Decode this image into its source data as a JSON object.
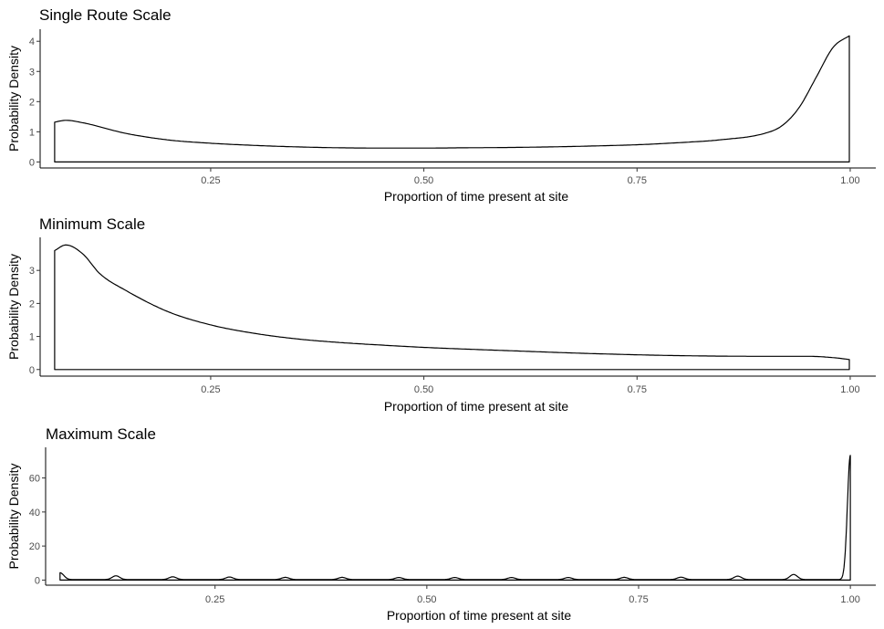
{
  "chart_data": [
    {
      "type": "area",
      "title": "Single Route Scale",
      "xlabel": "Proportion of time present at site",
      "ylabel": "Probability Density",
      "xlim": [
        0.05,
        1.03
      ],
      "ylim": [
        -0.2,
        4.4
      ],
      "xticks": [
        0.25,
        0.5,
        0.75,
        1.0
      ],
      "xtick_labels": [
        "0.25",
        "0.50",
        "0.75",
        "1.00"
      ],
      "yticks": [
        0,
        1,
        2,
        3,
        4
      ],
      "ytick_labels": [
        "0",
        "1",
        "2",
        "3",
        "4"
      ],
      "grid": false,
      "x": [
        0.067,
        0.08,
        0.1,
        0.15,
        0.2,
        0.25,
        0.3,
        0.35,
        0.4,
        0.45,
        0.5,
        0.55,
        0.6,
        0.65,
        0.7,
        0.75,
        0.8,
        0.85,
        0.9,
        0.92,
        0.94,
        0.96,
        0.98,
        1.0
      ],
      "values": [
        1.32,
        1.38,
        1.3,
        0.95,
        0.73,
        0.62,
        0.55,
        0.5,
        0.47,
        0.46,
        0.46,
        0.47,
        0.48,
        0.5,
        0.53,
        0.57,
        0.64,
        0.74,
        0.95,
        1.2,
        1.8,
        2.8,
        3.8,
        4.2
      ]
    },
    {
      "type": "area",
      "title": "Minimum Scale",
      "xlabel": "Proportion of time present at site",
      "ylabel": "Probability Density",
      "xlim": [
        0.05,
        1.03
      ],
      "ylim": [
        -0.2,
        4.0
      ],
      "xticks": [
        0.25,
        0.5,
        0.75,
        1.0
      ],
      "xtick_labels": [
        "0.25",
        "0.50",
        "0.75",
        "1.00"
      ],
      "yticks": [
        0,
        1,
        2,
        3
      ],
      "ytick_labels": [
        "0",
        "1",
        "2",
        "3"
      ],
      "grid": false,
      "x": [
        0.067,
        0.08,
        0.1,
        0.12,
        0.15,
        0.2,
        0.25,
        0.3,
        0.35,
        0.4,
        0.45,
        0.5,
        0.6,
        0.7,
        0.8,
        0.9,
        0.95,
        0.98,
        1.0
      ],
      "values": [
        3.6,
        3.77,
        3.5,
        2.9,
        2.4,
        1.75,
        1.35,
        1.1,
        0.93,
        0.82,
        0.74,
        0.67,
        0.57,
        0.48,
        0.42,
        0.4,
        0.4,
        0.36,
        0.3
      ]
    },
    {
      "type": "area",
      "title": "Maximum Scale",
      "xlabel": "Proportion of time present at site",
      "ylabel": "Probability Density",
      "xlim": [
        0.05,
        1.03
      ],
      "ylim": [
        -3,
        78
      ],
      "xticks": [
        0.25,
        0.5,
        0.75,
        1.0
      ],
      "xtick_labels": [
        "0.25",
        "0.50",
        "0.75",
        "1.00"
      ],
      "yticks": [
        0,
        20,
        40,
        60
      ],
      "ytick_labels": [
        "0",
        "20",
        "40",
        "60"
      ],
      "grid": false,
      "baseline": 0.3,
      "bumps": [
        {
          "x": 0.067,
          "height": 4.0
        },
        {
          "x": 0.133,
          "height": 2.2
        },
        {
          "x": 0.2,
          "height": 1.6
        },
        {
          "x": 0.267,
          "height": 1.5
        },
        {
          "x": 0.333,
          "height": 1.3
        },
        {
          "x": 0.4,
          "height": 1.3
        },
        {
          "x": 0.467,
          "height": 1.2
        },
        {
          "x": 0.533,
          "height": 1.2
        },
        {
          "x": 0.6,
          "height": 1.2
        },
        {
          "x": 0.667,
          "height": 1.2
        },
        {
          "x": 0.733,
          "height": 1.3
        },
        {
          "x": 0.8,
          "height": 1.4
        },
        {
          "x": 0.867,
          "height": 2.0
        },
        {
          "x": 0.933,
          "height": 3.0
        }
      ],
      "peak": {
        "x": 1.0,
        "height": 73
      }
    }
  ]
}
